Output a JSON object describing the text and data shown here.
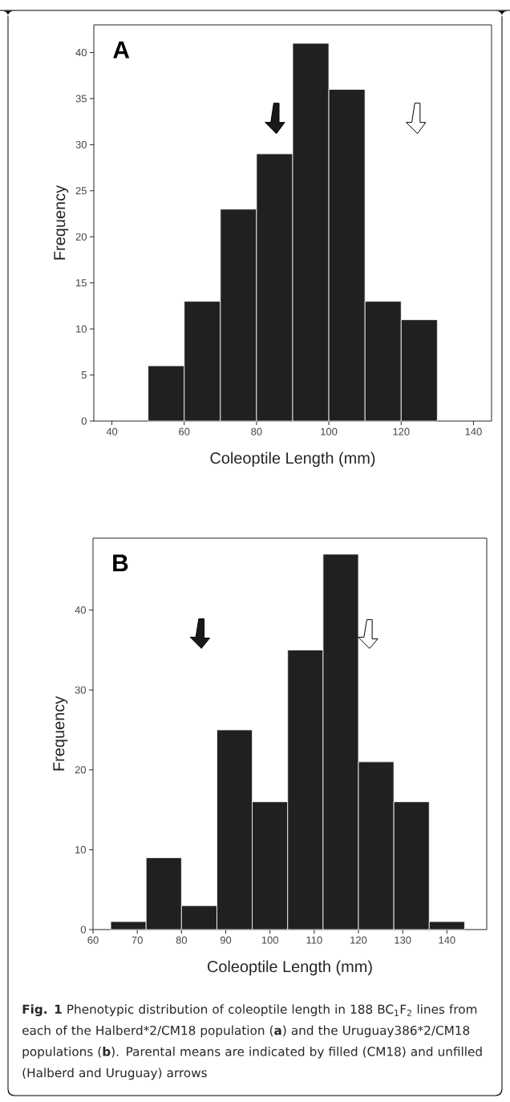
{
  "chart_data": [
    {
      "type": "histogram",
      "xlabel": "Coleoptile Length (mm)",
      "ylabel": "Frequency",
      "color": "#202020",
      "bins": [
        50,
        60,
        70,
        80,
        90,
        100,
        110,
        120,
        130
      ],
      "values": [
        6,
        13,
        23,
        29,
        41,
        36,
        13,
        11
      ],
      "xlim": [
        35,
        145
      ],
      "xticks": [
        40,
        60,
        80,
        100,
        120,
        140
      ],
      "ylim": [
        0,
        43
      ],
      "yticks": [
        0,
        5,
        10,
        15,
        20,
        25,
        30,
        35,
        40
      ],
      "annotations": [
        "A"
      ]
    },
    {
      "type": "histogram",
      "xlabel": "Coleoptile Length (mm)",
      "ylabel": "Frequency",
      "color": "#202020",
      "bins": [
        64,
        72,
        80,
        88,
        96,
        104,
        112,
        120,
        128,
        136,
        144
      ],
      "values": [
        1,
        9,
        3,
        25,
        16,
        35,
        47,
        21,
        16,
        1
      ],
      "xlim": [
        60,
        149
      ],
      "xticks": [
        60,
        70,
        80,
        90,
        100,
        110,
        120,
        130,
        140
      ],
      "ylim": [
        0,
        49
      ],
      "yticks": [
        0,
        10,
        20,
        30,
        40
      ],
      "annotations": [
        "B",
        "**Fig. 1** Phenotypic distribution of coleoptile length in 188 BC$_{1}$F$_{2}$ lines from each of the Halberd*2/CM18 population (**a**) and the Uruguay386*2/CM18 populations (**b**). Parental means are indicated by filled (CM18) and unfilled (Halberd and Uruguay) arrows"
      ]
    }
  ]
}
